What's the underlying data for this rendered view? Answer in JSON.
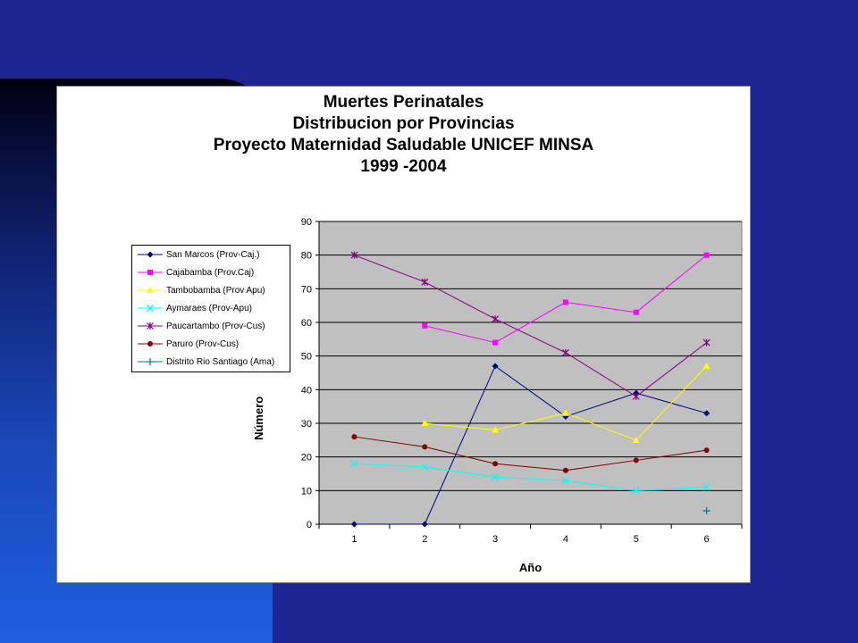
{
  "chart_data": {
    "type": "line",
    "title": [
      "Muertes Perinatales",
      "Distribucion por Provincias",
      "Proyecto Maternidad Saludable UNICEF MINSA",
      "1999 -2004"
    ],
    "xlabel": "Año",
    "ylabel": "Número",
    "categories": [
      "1",
      "2",
      "3",
      "4",
      "5",
      "6"
    ],
    "ylim": [
      0,
      90
    ],
    "yticks": [
      "0",
      "10",
      "20",
      "30",
      "40",
      "50",
      "60",
      "70",
      "80",
      "90"
    ],
    "grid": true,
    "legend_position": "left",
    "plot_background": "#c0c0c0",
    "series": [
      {
        "name": "San Marcos (Prov-Caj.)",
        "color": "#000080",
        "marker": "diamond",
        "values": [
          0,
          0,
          47,
          32,
          39,
          33
        ]
      },
      {
        "name": "Cajabamba (Prov.Caj)",
        "color": "#ff00ff",
        "marker": "square",
        "values": [
          null,
          59,
          54,
          66,
          63,
          80
        ]
      },
      {
        "name": "Tambobamba (Prov Apu)",
        "color": "#ffff00",
        "marker": "triangle",
        "values": [
          null,
          30,
          28,
          33,
          25,
          47
        ]
      },
      {
        "name": "Aymaraes (Prov-Apu)",
        "color": "#00ffff",
        "marker": "x",
        "values": [
          18,
          17,
          14,
          13,
          10,
          11
        ]
      },
      {
        "name": "Paucartambo (Prov-Cus)",
        "color": "#800080",
        "marker": "star",
        "values": [
          80,
          72,
          61,
          51,
          38,
          54
        ]
      },
      {
        "name": "Paruro (Prov-Cus)",
        "color": "#800000",
        "marker": "circle",
        "values": [
          26,
          23,
          18,
          16,
          19,
          22
        ]
      },
      {
        "name": "Distrito Rio Santiago (Ama)",
        "color": "#008080",
        "marker": "plus",
        "values": [
          null,
          null,
          null,
          null,
          null,
          4
        ]
      }
    ]
  }
}
